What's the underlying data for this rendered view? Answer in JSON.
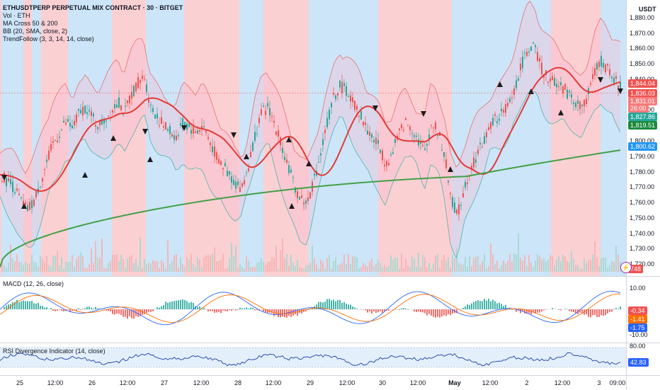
{
  "header": {
    "title": "ETHUSDTPERP PERPETUAL MIX CONTRACT · 30 · BITGET",
    "indicators": [
      "Vol · ETH",
      "MA Cross 50 & 200",
      "BB (20, SMA, close, 2)",
      "TrendFollow (3, 3, 14, 14, close)"
    ],
    "currency": "USDT"
  },
  "colors": {
    "up": "#26a69a",
    "down": "#ef5350",
    "bg_red": "#fbd0d3",
    "bg_blue": "#cce5f8",
    "ma50": "#e53935",
    "ma200": "#43a047",
    "bb": "#e57373",
    "bb_lower": "#4db6ac",
    "macd": "#2962ff",
    "signal": "#ff6d00",
    "rsi": "#1e3fa8"
  },
  "main_axis": {
    "ticks": [
      "1,880.00",
      "1,870.00",
      "1,860.00",
      "1,850.00",
      "1,840.00",
      "1,830.00",
      "1,820.00",
      "1,810.00",
      "1,800.00",
      "1,790.00",
      "1,780.00",
      "1,770.00",
      "1,760.00",
      "1,750.00",
      "1,740.00",
      "1,730.00",
      "1,720.00"
    ],
    "badges": [
      {
        "label": "1,844.04",
        "color": "#ef5350"
      },
      {
        "label": "1,836.03",
        "color": "#ef5350"
      },
      {
        "label": "1,831.01",
        "color": "#f77c7c"
      },
      {
        "label": "26:00",
        "color": "#f77c7c"
      },
      {
        "label": "1,827.86",
        "color": "#26a69a"
      },
      {
        "label": "1,819.51",
        "color": "#1b8a3c"
      },
      {
        "label": "1,800.62",
        "color": "#2196f3"
      },
      {
        "label": "748",
        "color": "#ef5350"
      }
    ]
  },
  "macd": {
    "label": "MACD (12, 26, close)",
    "ticks": [
      "10.00",
      "-10.00"
    ],
    "badges": [
      {
        "label": "-0.34",
        "color": "#ef5350"
      },
      {
        "label": "-1.41",
        "color": "#ff6d00"
      },
      {
        "label": "-1.75",
        "color": "#2962ff"
      }
    ]
  },
  "rsi": {
    "label": "RSI Divergence Indicator (14, close)",
    "ticks": [
      "80.00"
    ],
    "badges": [
      {
        "label": "42.83",
        "color": "#2962ff"
      }
    ]
  },
  "time_axis": [
    "25",
    "12:00",
    "26",
    "12:00",
    "27",
    "12:00",
    "28",
    "12:00",
    "29",
    "12:00",
    "30",
    "12:00",
    "May",
    "12:00",
    "2",
    "12:00",
    "3",
    "09:00"
  ],
  "chart_data": {
    "type": "candlestick",
    "symbol": "ETHUSDTPERP",
    "interval": "30",
    "ylim": [
      1715,
      1885
    ],
    "series_close": [
      1778,
      1774,
      1770,
      1762,
      1755,
      1760,
      1772,
      1785,
      1798,
      1805,
      1812,
      1808,
      1818,
      1822,
      1815,
      1810,
      1814,
      1820,
      1826,
      1818,
      1830,
      1838,
      1842,
      1822,
      1815,
      1810,
      1806,
      1802,
      1812,
      1808,
      1806,
      1810,
      1800,
      1790,
      1784,
      1778,
      1772,
      1770,
      1785,
      1805,
      1818,
      1822,
      1810,
      1798,
      1784,
      1770,
      1762,
      1760,
      1775,
      1792,
      1812,
      1828,
      1836,
      1832,
      1825,
      1818,
      1808,
      1802,
      1796,
      1785,
      1792,
      1805,
      1812,
      1808,
      1800,
      1792,
      1812,
      1806,
      1790,
      1762,
      1752,
      1770,
      1782,
      1792,
      1800,
      1810,
      1815,
      1818,
      1825,
      1838,
      1852,
      1862,
      1858,
      1845,
      1840,
      1838,
      1835,
      1830,
      1825,
      1822,
      1830,
      1845,
      1852,
      1846,
      1840,
      1835
    ],
    "ma50_ends": [
      1755,
      1838
    ],
    "ma200_ends": [
      1718,
      1813
    ],
    "last_price": 1831.01
  }
}
